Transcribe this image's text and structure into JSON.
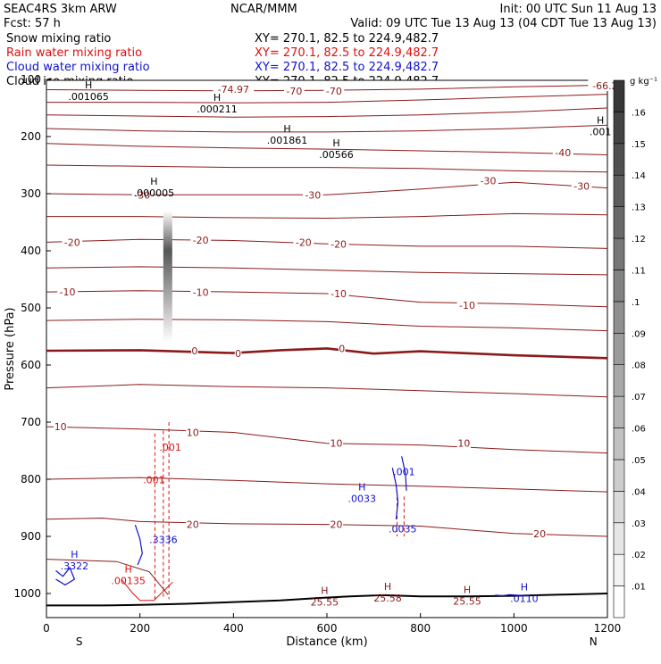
{
  "header": {
    "left_lines": [
      "SEAC4RS  3km ARW",
      "Fcst:    57 h"
    ],
    "center_line": "NCAR/MMM",
    "right_lines": [
      "Init: 00 UTC Sun 11 Aug 13",
      "Valid: 09 UTC Tue 13 Aug 13 (04 CDT Tue 13 Aug 13)"
    ],
    "fields": [
      {
        "name": "Snow mixing ratio",
        "xy": "XY= 270.1, 82.5 to 224.9,482.7",
        "color": "#000000"
      },
      {
        "name": "Rain water mixing ratio",
        "xy": "XY= 270.1, 82.5 to 224.9,482.7",
        "color": "#e01010"
      },
      {
        "name": "Cloud water mixing ratio",
        "xy": "XY= 270.1, 82.5 to 224.9,482.7",
        "color": "#1010d0"
      },
      {
        "name": "Cloud ice mixing ratio",
        "xy": "XY= 270.1, 82.5 to 224.9,482.7",
        "color": "#000000"
      }
    ]
  },
  "chart_data": {
    "type": "contour",
    "xlabel": "Distance (km)",
    "ylabel": "Pressure (hPa)",
    "xlim": [
      0,
      1200
    ],
    "ylim": [
      1000,
      100
    ],
    "x_ticks": [
      0,
      200,
      400,
      600,
      800,
      1000,
      1200
    ],
    "y_ticks": [
      100,
      200,
      300,
      400,
      500,
      600,
      700,
      800,
      900,
      1000
    ],
    "x_end_labels": {
      "left": "S",
      "right": "N"
    },
    "colorbar": {
      "unit": "g kg⁻¹",
      "ticks": [
        ".01",
        ".02",
        ".03",
        ".04",
        ".05",
        ".06",
        ".07",
        ".08",
        ".09",
        ".1",
        ".11",
        ".12",
        ".13",
        ".14",
        ".15",
        ".16"
      ]
    },
    "temperature_contours": [
      {
        "value": -70,
        "labels": [
          {
            "text": "-74.97",
            "x": 400,
            "p": 117
          },
          {
            "text": "-70",
            "x": 530,
            "p": 120
          },
          {
            "text": "-70",
            "x": 615,
            "p": 120
          },
          {
            "text": "-66.2",
            "x": 1195,
            "p": 111
          }
        ]
      },
      {
        "value": -40,
        "labels": [
          {
            "text": "-40",
            "x": 1105,
            "p": 228
          }
        ]
      },
      {
        "value": -30,
        "labels": [
          {
            "text": "-30",
            "x": 205,
            "p": 302
          },
          {
            "text": "-30",
            "x": 570,
            "p": 302
          },
          {
            "text": "-30",
            "x": 945,
            "p": 277
          },
          {
            "text": "-30",
            "x": 1145,
            "p": 287
          }
        ]
      },
      {
        "value": -20,
        "labels": [
          {
            "text": "-20",
            "x": 55,
            "p": 385
          },
          {
            "text": "-20",
            "x": 330,
            "p": 381
          },
          {
            "text": "-20",
            "x": 550,
            "p": 385
          },
          {
            "text": "-20",
            "x": 625,
            "p": 388
          }
        ]
      },
      {
        "value": -10,
        "labels": [
          {
            "text": "-10",
            "x": 45,
            "p": 472
          },
          {
            "text": "-10",
            "x": 330,
            "p": 473
          },
          {
            "text": "-10",
            "x": 625,
            "p": 475
          },
          {
            "text": "-10",
            "x": 900,
            "p": 495
          }
        ]
      },
      {
        "value": 0,
        "labels": [
          {
            "text": "0",
            "x": 317,
            "p": 575
          },
          {
            "text": "0",
            "x": 410,
            "p": 580
          },
          {
            "text": "0",
            "x": 632,
            "p": 571
          }
        ]
      },
      {
        "value": 10,
        "labels": [
          {
            "text": "10",
            "x": 30,
            "p": 708
          },
          {
            "text": "10",
            "x": 313,
            "p": 718
          },
          {
            "text": "10",
            "x": 620,
            "p": 737
          },
          {
            "text": "10",
            "x": 893,
            "p": 737
          }
        ]
      },
      {
        "value": 20,
        "labels": [
          {
            "text": "20",
            "x": 313,
            "p": 879
          },
          {
            "text": "20",
            "x": 620,
            "p": 879
          },
          {
            "text": "20",
            "x": 1055,
            "p": 895
          }
        ]
      }
    ],
    "extrema_labels": [
      {
        "mark": "H",
        "value": ".001065",
        "x": 90,
        "p": 128,
        "color": "#000000"
      },
      {
        "mark": "H",
        "value": ".000211",
        "x": 365,
        "p": 150,
        "color": "#000000"
      },
      {
        "mark": "H",
        "value": ".001861",
        "x": 515,
        "p": 205,
        "color": "#000000"
      },
      {
        "mark": "H",
        "value": ".00566",
        "x": 620,
        "p": 230,
        "color": "#000000"
      },
      {
        "mark": "H",
        "value": ".000005",
        "x": 230,
        "p": 297,
        "color": "#000000"
      },
      {
        "mark": "H",
        "value": ".001",
        "x": 1185,
        "p": 190,
        "color": "#000000"
      },
      {
        "mark": "H",
        "value": ".3322",
        "x": 60,
        "p": 950,
        "color": "#1010d0"
      },
      {
        "mark": "H",
        "value": ".00135",
        "x": 175,
        "p": 976,
        "color": "#e01010"
      },
      {
        "mark": "",
        "value": ".001",
        "x": 265,
        "p": 742,
        "color": "#e01010"
      },
      {
        "mark": "",
        "value": ".001",
        "x": 230,
        "p": 799,
        "color": "#e01010"
      },
      {
        "mark": "",
        "value": ".3336",
        "x": 250,
        "p": 904,
        "color": "#1010d0"
      },
      {
        "mark": "H",
        "value": ".0033",
        "x": 675,
        "p": 832,
        "color": "#1010d0"
      },
      {
        "mark": "",
        "value": ".001",
        "x": 765,
        "p": 785,
        "color": "#1010d0"
      },
      {
        "mark": "",
        "value": ".0035",
        "x": 762,
        "p": 885,
        "color": "#1010d0"
      },
      {
        "mark": "H",
        "value": "25.55",
        "x": 595,
        "p": 1013,
        "color": "#8b1a1a"
      },
      {
        "mark": "H",
        "value": "25.58",
        "x": 730,
        "p": 1006,
        "color": "#8b1a1a"
      },
      {
        "mark": "H",
        "value": "25.55",
        "x": 900,
        "p": 1012,
        "color": "#8b1a1a"
      },
      {
        "mark": "H",
        "value": ".0110",
        "x": 1022,
        "p": 1007,
        "color": "#1010d0"
      }
    ]
  }
}
